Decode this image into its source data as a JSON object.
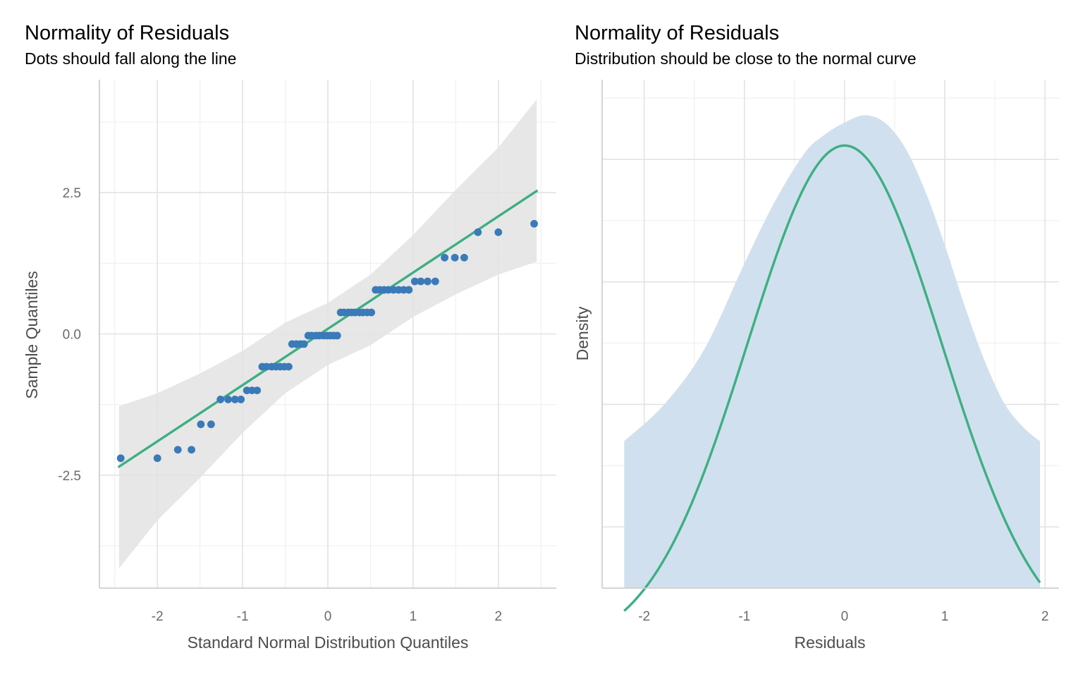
{
  "chart_data": [
    {
      "type": "scatter",
      "title": "Normality of Residuals",
      "subtitle": "Dots should fall along the line",
      "xlabel": "Standard Normal Distribution Quantiles",
      "ylabel": "Sample Quantiles",
      "xlim": [
        -2.68,
        2.68
      ],
      "ylim": [
        -4.5,
        4.5
      ],
      "x_ticks": [
        -2,
        -1,
        0,
        1,
        2
      ],
      "x_tick_labels": [
        "-2",
        "-1",
        "0",
        "1",
        "2"
      ],
      "y_ticks": [
        -2.5,
        0.0,
        2.5
      ],
      "y_tick_labels": [
        "-2.5",
        "0.0",
        "2.5"
      ],
      "grid": true,
      "colors": {
        "points": "#3a7ab8",
        "line": "#3daf82",
        "band": "#e3e3e3"
      },
      "points": [
        [
          -2.43,
          -2.2
        ],
        [
          -2.0,
          -2.2
        ],
        [
          -1.76,
          -2.05
        ],
        [
          -1.6,
          -2.05
        ],
        [
          -1.49,
          -1.6
        ],
        [
          -1.37,
          -1.6
        ],
        [
          -1.26,
          -1.16
        ],
        [
          -1.17,
          -1.16
        ],
        [
          -1.09,
          -1.16
        ],
        [
          -1.02,
          -1.16
        ],
        [
          -0.95,
          -1.0
        ],
        [
          -0.89,
          -1.0
        ],
        [
          -0.83,
          -1.0
        ],
        [
          -0.77,
          -0.58
        ],
        [
          -0.72,
          -0.58
        ],
        [
          -0.66,
          -0.58
        ],
        [
          -0.61,
          -0.58
        ],
        [
          -0.56,
          -0.58
        ],
        [
          -0.51,
          -0.58
        ],
        [
          -0.46,
          -0.58
        ],
        [
          -0.42,
          -0.18
        ],
        [
          -0.37,
          -0.18
        ],
        [
          -0.32,
          -0.18
        ],
        [
          -0.28,
          -0.18
        ],
        [
          -0.23,
          -0.03
        ],
        [
          -0.19,
          -0.03
        ],
        [
          -0.14,
          -0.03
        ],
        [
          -0.1,
          -0.03
        ],
        [
          -0.05,
          -0.03
        ],
        [
          -0.01,
          -0.03
        ],
        [
          0.03,
          -0.03
        ],
        [
          0.07,
          -0.03
        ],
        [
          0.11,
          -0.03
        ],
        [
          0.15,
          0.38
        ],
        [
          0.19,
          0.38
        ],
        [
          0.24,
          0.38
        ],
        [
          0.28,
          0.38
        ],
        [
          0.32,
          0.38
        ],
        [
          0.37,
          0.38
        ],
        [
          0.41,
          0.38
        ],
        [
          0.46,
          0.38
        ],
        [
          0.51,
          0.38
        ],
        [
          0.56,
          0.78
        ],
        [
          0.61,
          0.78
        ],
        [
          0.66,
          0.78
        ],
        [
          0.71,
          0.78
        ],
        [
          0.77,
          0.78
        ],
        [
          0.83,
          0.78
        ],
        [
          0.89,
          0.78
        ],
        [
          0.95,
          0.78
        ],
        [
          1.02,
          0.93
        ],
        [
          1.09,
          0.93
        ],
        [
          1.17,
          0.93
        ],
        [
          1.26,
          0.93
        ],
        [
          1.37,
          1.35
        ],
        [
          1.49,
          1.35
        ],
        [
          1.6,
          1.35
        ],
        [
          1.76,
          1.8
        ],
        [
          2.0,
          1.8
        ],
        [
          2.42,
          1.95
        ]
      ],
      "fit_line": {
        "x": [
          -2.45,
          2.45
        ],
        "y": [
          -2.35,
          2.53
        ]
      },
      "confidence_band": {
        "x": [
          -2.45,
          -2.0,
          -1.5,
          -1.0,
          -0.5,
          0.0,
          0.5,
          1.0,
          1.5,
          2.0,
          2.45
        ],
        "upper": [
          -1.28,
          -1.05,
          -0.7,
          -0.3,
          0.2,
          0.55,
          1.05,
          1.75,
          2.55,
          3.3,
          4.15
        ],
        "lower": [
          -4.15,
          -3.3,
          -2.55,
          -1.75,
          -1.05,
          -0.55,
          -0.2,
          0.3,
          0.7,
          1.05,
          1.28
        ]
      }
    },
    {
      "type": "area",
      "title": "Normality of Residuals",
      "subtitle": "Distribution should be close to the normal curve",
      "xlabel": "Residuals",
      "ylabel": "Density",
      "xlim": [
        -2.42,
        2.14
      ],
      "ylim": [
        0.05,
        0.465
      ],
      "x_ticks": [
        -2,
        -1,
        0,
        1,
        2
      ],
      "x_tick_labels": [
        "-2",
        "-1",
        "0",
        "1",
        "2"
      ],
      "y_ticks_unlabeled": [
        0.1,
        0.2,
        0.3,
        0.4
      ],
      "grid": true,
      "colors": {
        "density_fill": "#d1e0ee",
        "normal_curve": "#3daf82"
      },
      "density": {
        "x": [
          -2.2,
          -1.8,
          -1.4,
          -1.0,
          -0.7,
          -0.4,
          -0.2,
          0.0,
          0.2,
          0.4,
          0.6,
          0.8,
          1.0,
          1.2,
          1.4,
          1.6,
          1.8,
          1.95
        ],
        "y": [
          0.17,
          0.2,
          0.245,
          0.315,
          0.365,
          0.405,
          0.42,
          0.43,
          0.436,
          0.43,
          0.41,
          0.375,
          0.33,
          0.28,
          0.235,
          0.2,
          0.18,
          0.17
        ]
      },
      "normal_curve": {
        "mean": 0.0,
        "sd": 0.97,
        "x_range": [
          -2.2,
          1.95
        ]
      }
    }
  ]
}
